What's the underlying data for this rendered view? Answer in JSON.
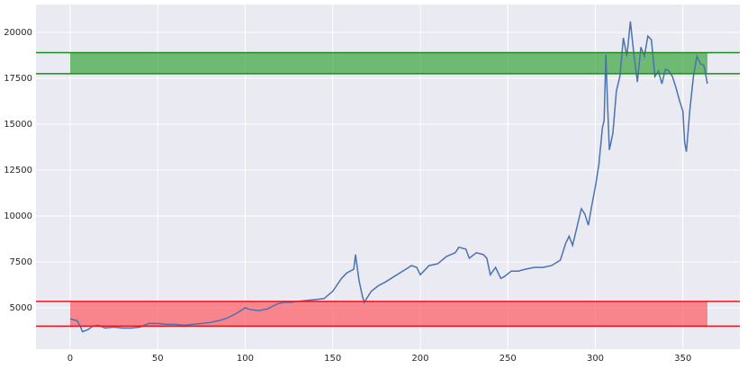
{
  "chart_data": {
    "type": "line",
    "x": [
      0,
      4,
      6,
      7,
      10,
      13,
      16,
      20,
      25,
      30,
      35,
      40,
      45,
      50,
      55,
      60,
      65,
      70,
      75,
      80,
      85,
      90,
      95,
      100,
      103,
      108,
      113,
      118,
      122,
      126,
      130,
      135,
      140,
      145,
      150,
      155,
      158,
      162,
      163,
      165,
      167,
      168,
      172,
      176,
      180,
      185,
      190,
      195,
      198,
      200,
      205,
      210,
      215,
      220,
      222,
      226,
      228,
      232,
      236,
      238,
      240,
      243,
      246,
      248,
      252,
      256,
      260,
      265,
      270,
      275,
      280,
      283,
      285,
      287,
      290,
      292,
      294,
      296,
      298,
      300,
      302,
      304,
      305,
      306,
      307,
      308,
      310,
      312,
      314,
      316,
      318,
      320,
      322,
      324,
      326,
      328,
      330,
      332,
      334,
      336,
      338,
      340,
      342,
      344,
      346,
      348,
      350,
      351,
      352,
      354,
      356,
      358,
      360,
      362,
      364
    ],
    "values": [
      4400,
      4300,
      3950,
      3700,
      3800,
      4000,
      4050,
      3900,
      3950,
      3900,
      3900,
      3950,
      4150,
      4150,
      4100,
      4100,
      4050,
      4100,
      4150,
      4200,
      4300,
      4450,
      4700,
      5000,
      4900,
      4850,
      4950,
      5200,
      5300,
      5300,
      5350,
      5400,
      5450,
      5500,
      5900,
      6600,
      6900,
      7100,
      7900,
      6500,
      5600,
      5300,
      5900,
      6200,
      6400,
      6700,
      7000,
      7300,
      7200,
      6800,
      7300,
      7400,
      7800,
      8000,
      8300,
      8200,
      7700,
      8000,
      7900,
      7700,
      6800,
      7200,
      6600,
      6700,
      7000,
      7000,
      7100,
      7200,
      7200,
      7300,
      7600,
      8500,
      8900,
      8400,
      9600,
      10400,
      10100,
      9500,
      10600,
      11600,
      12800,
      14800,
      15200,
      18800,
      16000,
      13600,
      14500,
      16800,
      17600,
      19700,
      18700,
      20600,
      18800,
      17300,
      19200,
      18700,
      19800,
      19600,
      17600,
      17900,
      17200,
      18000,
      17900,
      17600,
      17000,
      16300,
      15700,
      14000,
      13500,
      15800,
      17600,
      18700,
      18300,
      18200,
      17200
    ],
    "color": "#4c72b0",
    "bands": [
      {
        "y0": 17750,
        "y1": 18900,
        "x0": 0,
        "x1": 364,
        "color": "#2ca02c",
        "line_color": "#1e8a1e"
      },
      {
        "y0": 4000,
        "y1": 5350,
        "x0": 0,
        "x1": 364,
        "color": "#ff4d55",
        "line_color": "#e8141c"
      }
    ],
    "xlim": [
      -19.5,
      382.5
    ],
    "ylim": [
      2745,
      21520
    ],
    "xticks": [
      0,
      50,
      100,
      150,
      200,
      250,
      300,
      350
    ],
    "yticks": [
      5000,
      7500,
      10000,
      12500,
      15000,
      17500,
      20000
    ],
    "grid": true
  }
}
